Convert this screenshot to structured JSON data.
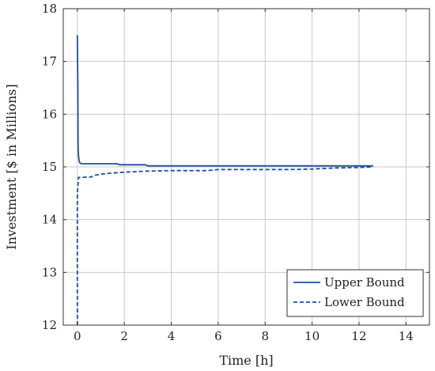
{
  "chart_data": {
    "type": "line",
    "xlabel": "Time [h]",
    "ylabel": "Investment [$ in Millions]",
    "xlim": [
      -0.6,
      15
    ],
    "ylim": [
      12,
      18
    ],
    "xticks": [
      0,
      2,
      4,
      6,
      8,
      10,
      12,
      14
    ],
    "yticks": [
      12,
      13,
      14,
      15,
      16,
      17,
      18
    ],
    "grid": true,
    "legend_position": "bottom-right",
    "colors": {
      "series": "#1f4e9c"
    },
    "series": [
      {
        "name": "Upper Bound",
        "style": "solid",
        "x": [
          0.0,
          0.01,
          0.02,
          0.03,
          0.05,
          0.08,
          0.12,
          0.2,
          0.5,
          1.0,
          1.7,
          1.8,
          2.0,
          2.9,
          3.0,
          4.0,
          6.0,
          8.0,
          10.0,
          12.0,
          12.6
        ],
        "y": [
          17.5,
          17.0,
          16.6,
          15.4,
          15.2,
          15.1,
          15.07,
          15.06,
          15.06,
          15.06,
          15.06,
          15.04,
          15.04,
          15.04,
          15.02,
          15.02,
          15.02,
          15.02,
          15.02,
          15.02,
          15.02
        ]
      },
      {
        "name": "Lower Bound",
        "style": "dashed",
        "x": [
          0.0,
          0.0,
          0.05,
          0.1,
          0.6,
          0.7,
          1.0,
          1.4,
          2.0,
          3.0,
          4.0,
          5.5,
          6.0,
          8.0,
          9.0,
          10.0,
          11.0,
          12.0,
          12.6
        ],
        "y": [
          12.0,
          14.5,
          14.8,
          14.8,
          14.81,
          14.84,
          14.86,
          14.88,
          14.9,
          14.92,
          14.93,
          14.93,
          14.95,
          14.95,
          14.95,
          14.96,
          14.98,
          14.99,
          15.0
        ]
      }
    ]
  }
}
